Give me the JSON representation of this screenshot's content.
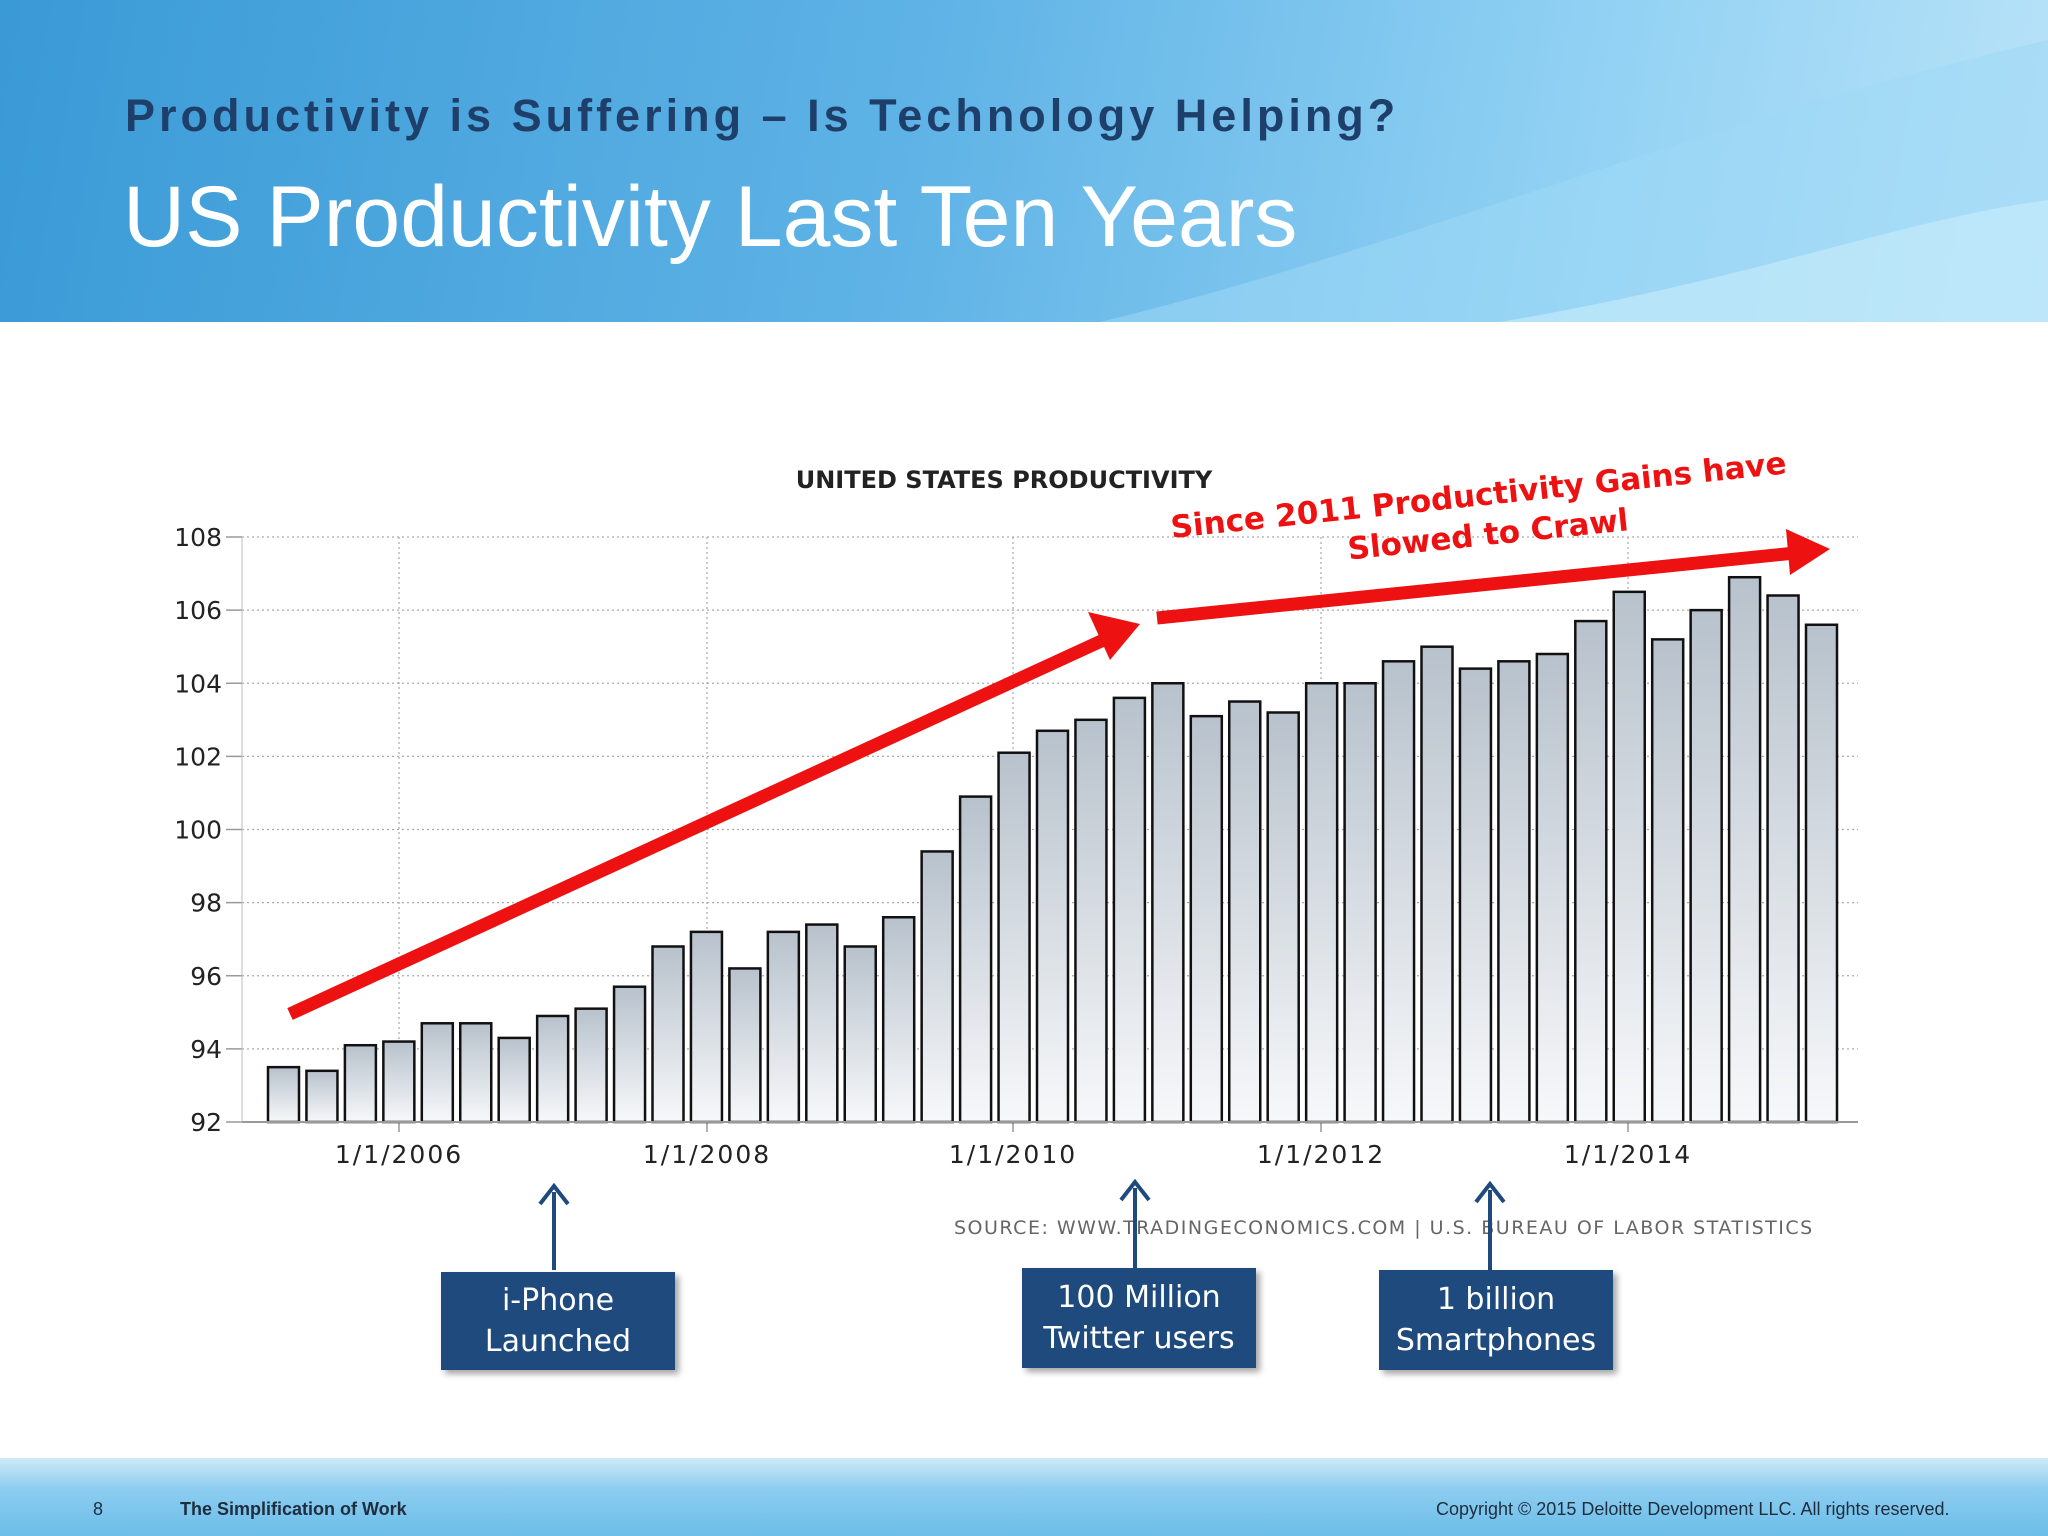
{
  "slide": {
    "subtitle": "Productivity is Suffering – Is Technology Helping?",
    "title": "US Productivity Last Ten Years"
  },
  "chart_data": {
    "type": "bar",
    "title": "UNITED STATES PRODUCTIVITY",
    "xlabel": "",
    "ylabel": "",
    "ylim": [
      92,
      108
    ],
    "yticks": [
      92,
      94,
      96,
      98,
      100,
      102,
      104,
      106,
      108
    ],
    "xtick_labels": [
      "1/1/2006",
      "1/1/2008",
      "1/1/2010",
      "1/1/2012",
      "1/1/2014"
    ],
    "grid": true,
    "values": [
      93.5,
      93.4,
      94.1,
      94.2,
      94.7,
      94.7,
      94.3,
      94.9,
      95.1,
      95.7,
      96.8,
      97.2,
      96.2,
      97.2,
      97.4,
      96.8,
      97.6,
      99.4,
      100.9,
      102.1,
      102.7,
      103.0,
      103.6,
      104.0,
      103.1,
      103.5,
      103.2,
      104.0,
      104.0,
      104.6,
      105.0,
      104.4,
      104.6,
      104.8,
      105.7,
      106.5,
      105.2,
      106.0,
      106.9,
      106.4,
      105.6
    ],
    "source": "SOURCE: WWW.TRADINGECONOMICS.COM | U.S. BUREAU OF LABOR STATISTICS",
    "annotation": [
      "Since 2011 Productivity Gains have",
      "Slowed to Crawl"
    ],
    "accent_color": "#ee1111"
  },
  "callouts": [
    {
      "line1": "i-Phone",
      "line2": "Launched"
    },
    {
      "line1": "100 Million",
      "line2": "Twitter users"
    },
    {
      "line1": "1 billion",
      "line2": "Smartphones"
    }
  ],
  "footer": {
    "page_number": "8",
    "deck_title": "The Simplification of Work",
    "copyright": "Copyright © 2015 Deloitte Development LLC. All rights reserved."
  }
}
